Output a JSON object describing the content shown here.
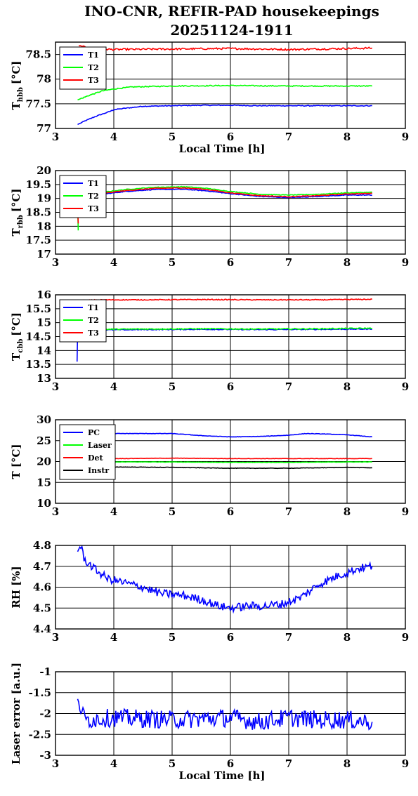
{
  "title_line1": "INO-CNR, REFIR-PAD housekeepings",
  "title_line2": "20251124-1911",
  "chart_data": [
    {
      "type": "line",
      "ylabel_main": "T",
      "ylabel_sub": "hbb",
      "ylabel_unit": "[°C]",
      "xlabel": "Local Time [h]",
      "xlim": [
        3,
        9
      ],
      "ylim": [
        77,
        78.75
      ],
      "xticks": [
        3,
        4,
        5,
        6,
        7,
        8,
        9
      ],
      "yticks": [
        77,
        77.5,
        78,
        78.5
      ],
      "grid": true,
      "legend_position": "top-left",
      "series": [
        {
          "name": "T1",
          "color": "#0000ff",
          "noise": 0.008,
          "points": [
            [
              3.38,
              77.08
            ],
            [
              3.5,
              77.15
            ],
            [
              3.7,
              77.25
            ],
            [
              3.9,
              77.33
            ],
            [
              4.0,
              77.38
            ],
            [
              4.2,
              77.41
            ],
            [
              4.5,
              77.45
            ],
            [
              5.0,
              77.46
            ],
            [
              5.5,
              77.47
            ],
            [
              6.0,
              77.47
            ],
            [
              6.5,
              77.46
            ],
            [
              7.0,
              77.46
            ],
            [
              7.5,
              77.46
            ],
            [
              8.0,
              77.46
            ],
            [
              8.43,
              77.46
            ]
          ]
        },
        {
          "name": "T2",
          "color": "#00ff00",
          "noise": 0.01,
          "points": [
            [
              3.38,
              77.58
            ],
            [
              3.6,
              77.68
            ],
            [
              3.8,
              77.76
            ],
            [
              4.0,
              77.8
            ],
            [
              4.3,
              77.84
            ],
            [
              4.6,
              77.85
            ],
            [
              5.0,
              77.86
            ],
            [
              6.0,
              77.87
            ],
            [
              7.0,
              77.86
            ],
            [
              8.0,
              77.86
            ],
            [
              8.43,
              77.86
            ]
          ]
        },
        {
          "name": "T3",
          "color": "#ff0000",
          "noise": 0.018,
          "points": [
            [
              3.4,
              78.68
            ],
            [
              3.6,
              78.62
            ],
            [
              4.0,
              78.6
            ],
            [
              5.0,
              78.61
            ],
            [
              6.0,
              78.62
            ],
            [
              7.0,
              78.6
            ],
            [
              8.0,
              78.62
            ],
            [
              8.43,
              78.63
            ]
          ]
        }
      ]
    },
    {
      "type": "line",
      "ylabel_main": "T",
      "ylabel_sub": "rbb",
      "ylabel_unit": "[°C]",
      "xlabel": "",
      "xlim": [
        3,
        9
      ],
      "ylim": [
        17,
        20
      ],
      "xticks": [
        3,
        4,
        5,
        6,
        7,
        8,
        9
      ],
      "yticks": [
        17,
        17.5,
        18,
        18.5,
        19,
        19.5,
        20
      ],
      "grid": true,
      "legend_position": "top-left",
      "series": [
        {
          "name": "T1",
          "color": "#0000ff",
          "noise": 0.012,
          "points": [
            [
              3.4,
              19.1
            ],
            [
              3.8,
              19.15
            ],
            [
              4.2,
              19.25
            ],
            [
              4.7,
              19.32
            ],
            [
              5.2,
              19.33
            ],
            [
              5.6,
              19.27
            ],
            [
              6.0,
              19.17
            ],
            [
              6.5,
              19.07
            ],
            [
              7.0,
              19.03
            ],
            [
              7.5,
              19.07
            ],
            [
              8.0,
              19.12
            ],
            [
              8.43,
              19.12
            ]
          ]
        },
        {
          "name": "T2",
          "color": "#00ff00",
          "noise": 0.012,
          "points": [
            [
              3.4,
              19.15
            ],
            [
              3.8,
              19.22
            ],
            [
              4.2,
              19.32
            ],
            [
              4.7,
              19.4
            ],
            [
              5.2,
              19.42
            ],
            [
              5.6,
              19.36
            ],
            [
              6.0,
              19.25
            ],
            [
              6.5,
              19.15
            ],
            [
              7.0,
              19.12
            ],
            [
              7.5,
              19.15
            ],
            [
              8.0,
              19.2
            ],
            [
              8.43,
              19.22
            ]
          ]
        },
        {
          "name": "T3",
          "color": "#ff0000",
          "noise": 0.012,
          "points": [
            [
              3.4,
              19.12
            ],
            [
              3.8,
              19.18
            ],
            [
              4.2,
              19.28
            ],
            [
              4.7,
              19.36
            ],
            [
              5.2,
              19.38
            ],
            [
              5.6,
              19.32
            ],
            [
              6.0,
              19.2
            ],
            [
              6.5,
              19.1
            ],
            [
              7.0,
              19.06
            ],
            [
              7.5,
              19.1
            ],
            [
              8.0,
              19.16
            ],
            [
              8.43,
              19.18
            ]
          ]
        }
      ]
    },
    {
      "type": "line",
      "ylabel_main": "T",
      "ylabel_sub": "cbb",
      "ylabel_unit": "[°C]",
      "xlabel": "",
      "xlim": [
        3,
        9
      ],
      "ylim": [
        13,
        16
      ],
      "xticks": [
        3,
        4,
        5,
        6,
        7,
        8,
        9
      ],
      "yticks": [
        13,
        13.5,
        14,
        14.5,
        15,
        15.5,
        16
      ],
      "grid": true,
      "legend_position": "top-left",
      "series": [
        {
          "name": "T1",
          "color": "#0000ff",
          "noise": 0.015,
          "points": [
            [
              3.4,
              14.72
            ],
            [
              3.8,
              14.74
            ],
            [
              4.5,
              14.75
            ],
            [
              5.5,
              14.76
            ],
            [
              6.5,
              14.75
            ],
            [
              7.5,
              14.76
            ],
            [
              8.43,
              14.77
            ]
          ]
        },
        {
          "name": "T2",
          "color": "#00ff00",
          "noise": 0.02,
          "points": [
            [
              3.4,
              14.76
            ],
            [
              3.8,
              14.76
            ],
            [
              4.5,
              14.77
            ],
            [
              5.5,
              14.78
            ],
            [
              6.5,
              14.77
            ],
            [
              7.5,
              14.78
            ],
            [
              8.43,
              14.8
            ]
          ]
        },
        {
          "name": "T3",
          "color": "#ff0000",
          "noise": 0.015,
          "points": [
            [
              3.4,
              15.8
            ],
            [
              3.8,
              15.82
            ],
            [
              4.5,
              15.82
            ],
            [
              5.5,
              15.83
            ],
            [
              6.5,
              15.82
            ],
            [
              7.5,
              15.82
            ],
            [
              8.43,
              15.84
            ]
          ]
        }
      ]
    },
    {
      "type": "line",
      "ylabel_main": "T [°C]",
      "ylabel_sub": "",
      "ylabel_unit": "",
      "xlabel": "",
      "xlim": [
        3,
        9
      ],
      "ylim": [
        10,
        30
      ],
      "xticks": [
        3,
        4,
        5,
        6,
        7,
        8,
        9
      ],
      "yticks": [
        10,
        15,
        20,
        25,
        30
      ],
      "grid": true,
      "legend_position": "top-left",
      "series": [
        {
          "name": "PC",
          "color": "#0000ff",
          "noise": 0.05,
          "points": [
            [
              3.4,
              26.6
            ],
            [
              4.0,
              26.7
            ],
            [
              5.0,
              26.7
            ],
            [
              5.5,
              26.2
            ],
            [
              6.0,
              25.9
            ],
            [
              6.5,
              26.0
            ],
            [
              7.0,
              26.3
            ],
            [
              7.3,
              26.7
            ],
            [
              7.6,
              26.6
            ],
            [
              8.0,
              26.4
            ],
            [
              8.43,
              25.9
            ]
          ]
        },
        {
          "name": "Laser",
          "color": "#00ff00",
          "noise": 0.05,
          "points": [
            [
              3.4,
              19.8
            ],
            [
              4.0,
              19.9
            ],
            [
              5.0,
              19.9
            ],
            [
              6.0,
              19.8
            ],
            [
              7.0,
              19.8
            ],
            [
              8.0,
              19.9
            ],
            [
              8.43,
              19.9
            ]
          ]
        },
        {
          "name": "Det",
          "color": "#ff0000",
          "noise": 0.04,
          "points": [
            [
              3.4,
              20.6
            ],
            [
              4.0,
              20.7
            ],
            [
              5.0,
              20.8
            ],
            [
              6.0,
              20.7
            ],
            [
              7.0,
              20.7
            ],
            [
              8.0,
              20.7
            ],
            [
              8.43,
              20.7
            ]
          ]
        },
        {
          "name": "Instr",
          "color": "#000000",
          "noise": 0.05,
          "points": [
            [
              3.4,
              18.6
            ],
            [
              4.0,
              18.7
            ],
            [
              5.0,
              18.6
            ],
            [
              6.0,
              18.4
            ],
            [
              7.0,
              18.4
            ],
            [
              8.0,
              18.6
            ],
            [
              8.43,
              18.5
            ]
          ]
        }
      ]
    },
    {
      "type": "line",
      "ylabel_main": "RH [%]",
      "ylabel_sub": "",
      "ylabel_unit": "",
      "xlabel": "",
      "xlim": [
        3,
        9
      ],
      "ylim": [
        4.4,
        4.8
      ],
      "xticks": [
        3,
        4,
        5,
        6,
        7,
        8,
        9
      ],
      "yticks": [
        4.4,
        4.5,
        4.6,
        4.7,
        4.8
      ],
      "grid": true,
      "legend_position": "none",
      "series": [
        {
          "name": "",
          "color": "#0000ff",
          "noise": 0.02,
          "points": [
            [
              3.38,
              4.77
            ],
            [
              3.43,
              4.8
            ],
            [
              3.5,
              4.73
            ],
            [
              3.7,
              4.68
            ],
            [
              3.9,
              4.64
            ],
            [
              4.2,
              4.62
            ],
            [
              4.5,
              4.6
            ],
            [
              4.8,
              4.57
            ],
            [
              5.2,
              4.56
            ],
            [
              5.5,
              4.54
            ],
            [
              5.8,
              4.51
            ],
            [
              6.0,
              4.5
            ],
            [
              6.3,
              4.51
            ],
            [
              6.6,
              4.51
            ],
            [
              6.9,
              4.52
            ],
            [
              7.2,
              4.55
            ],
            [
              7.5,
              4.61
            ],
            [
              7.8,
              4.65
            ],
            [
              8.0,
              4.67
            ],
            [
              8.2,
              4.69
            ],
            [
              8.43,
              4.7
            ]
          ]
        }
      ]
    },
    {
      "type": "line",
      "ylabel_main": "Laser error [a.u.]",
      "ylabel_sub": "",
      "ylabel_unit": "",
      "xlabel": "Local Time [h]",
      "xlim": [
        3,
        9
      ],
      "ylim": [
        -3,
        -1
      ],
      "xticks": [
        3,
        4,
        5,
        6,
        7,
        8,
        9
      ],
      "yticks": [
        -3,
        -2.5,
        -2,
        -1.5,
        -1
      ],
      "grid": true,
      "legend_position": "none",
      "series": [
        {
          "name": "",
          "color": "#0000ff",
          "noise": 0.22,
          "points": [
            [
              3.38,
              -1.65
            ],
            [
              3.5,
              -2.15
            ],
            [
              4.0,
              -2.1
            ],
            [
              5.0,
              -2.15
            ],
            [
              6.0,
              -2.1
            ],
            [
              6.5,
              -2.2
            ],
            [
              7.0,
              -2.1
            ],
            [
              7.5,
              -2.15
            ],
            [
              8.0,
              -2.15
            ],
            [
              8.43,
              -2.2
            ]
          ]
        }
      ]
    }
  ]
}
